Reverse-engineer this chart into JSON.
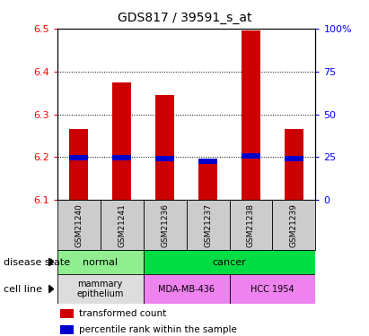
{
  "title": "GDS817 / 39591_s_at",
  "samples": [
    "GSM21240",
    "GSM21241",
    "GSM21236",
    "GSM21237",
    "GSM21238",
    "GSM21239"
  ],
  "bar_values": [
    6.265,
    6.375,
    6.345,
    6.19,
    6.495,
    6.265
  ],
  "bar_base": 6.1,
  "percentile_values": [
    6.193,
    6.193,
    6.191,
    6.184,
    6.196,
    6.19
  ],
  "percentile_heights": [
    0.012,
    0.012,
    0.012,
    0.012,
    0.012,
    0.012
  ],
  "ylim": [
    6.1,
    6.5
  ],
  "yticks_left": [
    6.1,
    6.2,
    6.3,
    6.4,
    6.5
  ],
  "yticks_right": [
    0,
    25,
    50,
    75,
    100
  ],
  "bar_color": "#cc0000",
  "percentile_color": "#0000cc",
  "plot_bg": "#ffffff",
  "grid_color": "#000000",
  "normal_color": "#90ee90",
  "cancer_color": "#00dd44",
  "mammary_color": "#dddddd",
  "mda_color": "#ee82ee",
  "hcc_color": "#ee82ee",
  "sample_box_color": "#cccccc",
  "label_disease": "disease state",
  "label_cell": "cell line",
  "legend_red": "transformed count",
  "legend_blue": "percentile rank within the sample"
}
